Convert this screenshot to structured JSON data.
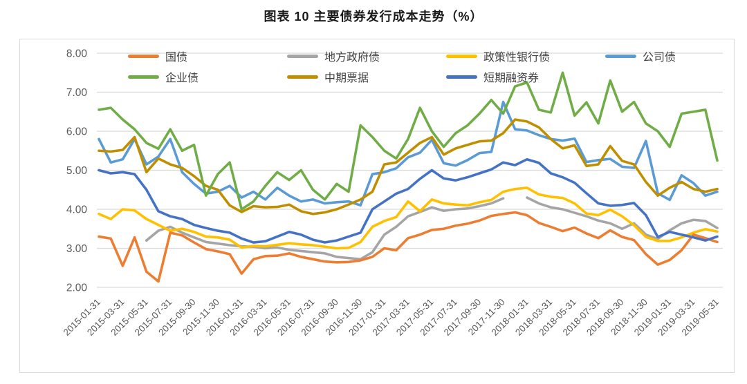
{
  "chart_data": {
    "type": "line",
    "title": "图表 10 主要债券发行成本走势（%）",
    "ylabel": "",
    "xlabel": "",
    "ylim": [
      2.0,
      8.0
    ],
    "y_tick_labels": [
      "8.00",
      "7.00",
      "6.00",
      "5.00",
      "4.00",
      "3.00",
      "2.00"
    ],
    "grid": "horizontal",
    "legend_position": "top",
    "x": [
      "2015-01-31",
      "2015-02-28",
      "2015-03-31",
      "2015-04-30",
      "2015-05-31",
      "2015-06-30",
      "2015-07-31",
      "2015-08-31",
      "2015-09-30",
      "2015-10-31",
      "2015-11-30",
      "2015-12-31",
      "2016-01-31",
      "2016-02-29",
      "2016-03-31",
      "2016-04-30",
      "2016-05-31",
      "2016-06-30",
      "2016-07-31",
      "2016-08-31",
      "2016-09-30",
      "2016-10-31",
      "2016-11-30",
      "2016-12-31",
      "2017-01-31",
      "2017-02-28",
      "2017-03-31",
      "2017-04-30",
      "2017-05-31",
      "2017-06-30",
      "2017-07-31",
      "2017-08-31",
      "2017-09-30",
      "2017-10-31",
      "2017-11-30",
      "2017-12-31",
      "2018-01-31",
      "2018-02-28",
      "2018-03-31",
      "2018-04-30",
      "2018-05-31",
      "2018-06-30",
      "2018-07-31",
      "2018-08-31",
      "2018-09-30",
      "2018-10-31",
      "2018-11-30",
      "2018-12-31",
      "2019-01-31",
      "2019-02-28",
      "2019-03-31",
      "2019-04-30",
      "2019-05-31"
    ],
    "x_tick_every": 2,
    "series": [
      {
        "id": "treasury",
        "label": "国债",
        "color": "#ED7D31",
        "values": [
          3.3,
          3.25,
          2.55,
          3.28,
          2.4,
          2.15,
          3.4,
          3.33,
          3.15,
          2.98,
          2.92,
          2.85,
          2.35,
          2.72,
          2.8,
          2.81,
          2.87,
          2.78,
          2.72,
          2.66,
          2.64,
          2.65,
          2.69,
          2.78,
          3.0,
          2.95,
          3.26,
          3.35,
          3.47,
          3.5,
          3.58,
          3.63,
          3.71,
          3.83,
          3.88,
          3.92,
          3.85,
          3.65,
          3.55,
          3.44,
          3.53,
          3.38,
          3.26,
          3.46,
          3.29,
          3.21,
          2.85,
          2.58,
          2.7,
          2.95,
          3.35,
          3.26,
          3.16
        ]
      },
      {
        "id": "local-government",
        "label": "地方政府债",
        "color": "#A5A5A5",
        "values": [
          null,
          null,
          null,
          null,
          3.2,
          3.45,
          3.55,
          3.4,
          3.28,
          3.16,
          3.12,
          3.08,
          3.05,
          3.04,
          3.0,
          3.02,
          2.96,
          2.93,
          2.9,
          2.87,
          2.78,
          2.75,
          2.72,
          2.9,
          3.35,
          3.55,
          3.82,
          3.93,
          4.05,
          3.96,
          4.0,
          4.02,
          4.08,
          4.15,
          4.28,
          null,
          4.3,
          4.15,
          4.05,
          4.0,
          3.91,
          3.82,
          3.71,
          3.64,
          3.5,
          3.64,
          3.35,
          3.24,
          3.46,
          3.64,
          3.73,
          3.7,
          3.52
        ]
      },
      {
        "id": "policy-bank",
        "label": "政策性银行债",
        "color": "#FFC000",
        "values": [
          3.88,
          3.75,
          4.0,
          3.97,
          3.75,
          3.6,
          3.45,
          3.5,
          3.42,
          3.3,
          3.28,
          3.22,
          3.02,
          3.06,
          3.05,
          3.09,
          3.13,
          3.1,
          3.08,
          3.04,
          3.0,
          3.01,
          3.16,
          3.55,
          3.7,
          3.8,
          4.2,
          3.95,
          4.25,
          4.15,
          4.12,
          4.1,
          4.18,
          4.24,
          4.45,
          4.52,
          4.55,
          4.38,
          4.32,
          4.29,
          4.15,
          3.89,
          3.85,
          3.99,
          3.82,
          3.59,
          3.29,
          3.19,
          3.19,
          3.28,
          3.4,
          3.49,
          3.43
        ]
      },
      {
        "id": "corporate",
        "label": "公司债",
        "color": "#5B9BD5",
        "values": [
          5.8,
          5.2,
          5.28,
          5.8,
          5.15,
          5.35,
          5.8,
          4.95,
          4.65,
          4.4,
          4.45,
          4.6,
          4.3,
          4.45,
          4.25,
          4.55,
          4.35,
          4.2,
          4.25,
          4.15,
          4.18,
          4.2,
          4.1,
          4.9,
          4.95,
          5.05,
          5.33,
          5.45,
          5.78,
          5.18,
          5.12,
          5.26,
          5.44,
          5.47,
          6.75,
          6.05,
          6.02,
          5.9,
          5.8,
          5.76,
          5.81,
          5.21,
          5.26,
          5.29,
          5.09,
          5.06,
          5.75,
          4.41,
          4.24,
          4.87,
          4.67,
          4.35,
          4.45
        ]
      },
      {
        "id": "enterprise",
        "label": "企业债",
        "color": "#70AD47",
        "values": [
          6.55,
          6.6,
          6.3,
          6.05,
          5.7,
          5.55,
          6.05,
          5.5,
          5.65,
          4.35,
          4.9,
          5.2,
          4.0,
          4.2,
          4.6,
          4.95,
          4.75,
          5.0,
          4.5,
          4.25,
          4.65,
          4.45,
          6.15,
          5.85,
          5.5,
          5.3,
          5.8,
          6.6,
          6.0,
          5.6,
          5.95,
          6.15,
          6.45,
          6.8,
          6.45,
          7.15,
          7.25,
          6.55,
          6.48,
          7.5,
          6.4,
          6.74,
          6.2,
          7.3,
          6.5,
          6.75,
          6.2,
          6.0,
          5.6,
          6.45,
          6.5,
          6.55,
          5.25
        ]
      },
      {
        "id": "mtn",
        "label": "中期票据",
        "color": "#BF8F00",
        "values": [
          5.5,
          5.48,
          5.52,
          5.85,
          4.95,
          5.3,
          5.15,
          5.06,
          4.85,
          4.6,
          4.5,
          4.1,
          3.93,
          4.08,
          4.05,
          4.06,
          4.12,
          3.95,
          3.88,
          3.92,
          4.0,
          4.12,
          4.25,
          4.45,
          5.15,
          5.2,
          5.45,
          5.7,
          5.85,
          5.4,
          5.56,
          5.65,
          5.74,
          5.76,
          5.95,
          6.3,
          6.25,
          6.1,
          5.8,
          5.56,
          5.64,
          5.11,
          5.15,
          5.62,
          5.24,
          5.15,
          4.7,
          4.35,
          4.55,
          4.7,
          4.52,
          4.45,
          4.52
        ]
      },
      {
        "id": "scp",
        "label": "短期融资券",
        "color": "#4472C4",
        "values": [
          5.0,
          4.92,
          4.95,
          4.9,
          4.5,
          3.95,
          3.82,
          3.75,
          3.6,
          3.52,
          3.45,
          3.4,
          3.25,
          3.15,
          3.18,
          3.3,
          3.42,
          3.35,
          3.22,
          3.15,
          3.2,
          3.3,
          3.4,
          4.0,
          4.2,
          4.4,
          4.52,
          4.78,
          5.0,
          4.79,
          4.74,
          4.82,
          4.92,
          5.02,
          5.2,
          5.13,
          5.28,
          5.19,
          4.92,
          4.82,
          4.68,
          4.41,
          4.15,
          4.09,
          4.11,
          4.16,
          3.85,
          3.29,
          3.42,
          3.35,
          3.28,
          3.2,
          3.3
        ]
      }
    ]
  }
}
